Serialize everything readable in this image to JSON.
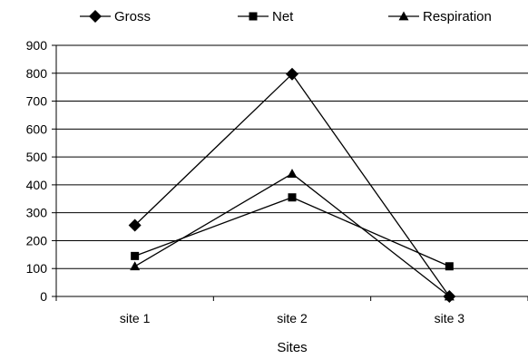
{
  "chart_data": {
    "type": "line",
    "categories": [
      "site 1",
      "site 2",
      "site 3"
    ],
    "series": [
      {
        "name": "Gross",
        "marker": "diamond",
        "values": [
          255,
          797,
          0
        ]
      },
      {
        "name": "Net",
        "marker": "square",
        "values": [
          145,
          355,
          108
        ]
      },
      {
        "name": "Respiration",
        "marker": "triangle",
        "values": [
          108,
          440,
          0
        ]
      }
    ],
    "xlabel": "Sites",
    "ylabel": "",
    "ylim": [
      0,
      900
    ],
    "yticks": [
      0,
      100,
      200,
      300,
      400,
      500,
      600,
      700,
      800,
      900
    ],
    "grid": true,
    "legend": "top",
    "colors": {
      "line": "#000000",
      "grid": "#000000"
    }
  }
}
